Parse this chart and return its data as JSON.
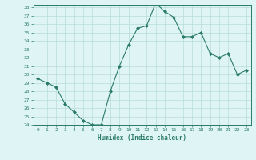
{
  "title": "",
  "xlabel": "Humidex (Indice chaleur)",
  "ylabel": "",
  "x": [
    0,
    1,
    2,
    3,
    4,
    5,
    6,
    7,
    8,
    9,
    10,
    11,
    12,
    13,
    14,
    15,
    16,
    17,
    18,
    19,
    20,
    21,
    22,
    23
  ],
  "y": [
    29.5,
    29.0,
    28.5,
    26.5,
    25.5,
    24.5,
    24.0,
    24.0,
    28.0,
    31.0,
    33.5,
    35.5,
    35.8,
    38.5,
    37.5,
    36.8,
    34.5,
    34.5,
    35.0,
    32.5,
    32.0,
    32.5,
    30.0,
    30.5
  ],
  "line_color": "#2a7a6a",
  "marker_color": "#2a7a6a",
  "bg_color": "#dff5f5",
  "grid_color": "#b8dada",
  "axis_color": "#2a7a6a",
  "ylim": [
    24,
    38
  ],
  "xlim": [
    -0.5,
    23.5
  ],
  "yticks": [
    24,
    25,
    26,
    27,
    28,
    29,
    30,
    31,
    32,
    33,
    34,
    35,
    36,
    37,
    38
  ],
  "xticks": [
    0,
    1,
    2,
    3,
    4,
    5,
    6,
    7,
    8,
    9,
    10,
    11,
    12,
    13,
    14,
    15,
    16,
    17,
    18,
    19,
    20,
    21,
    22,
    23
  ]
}
